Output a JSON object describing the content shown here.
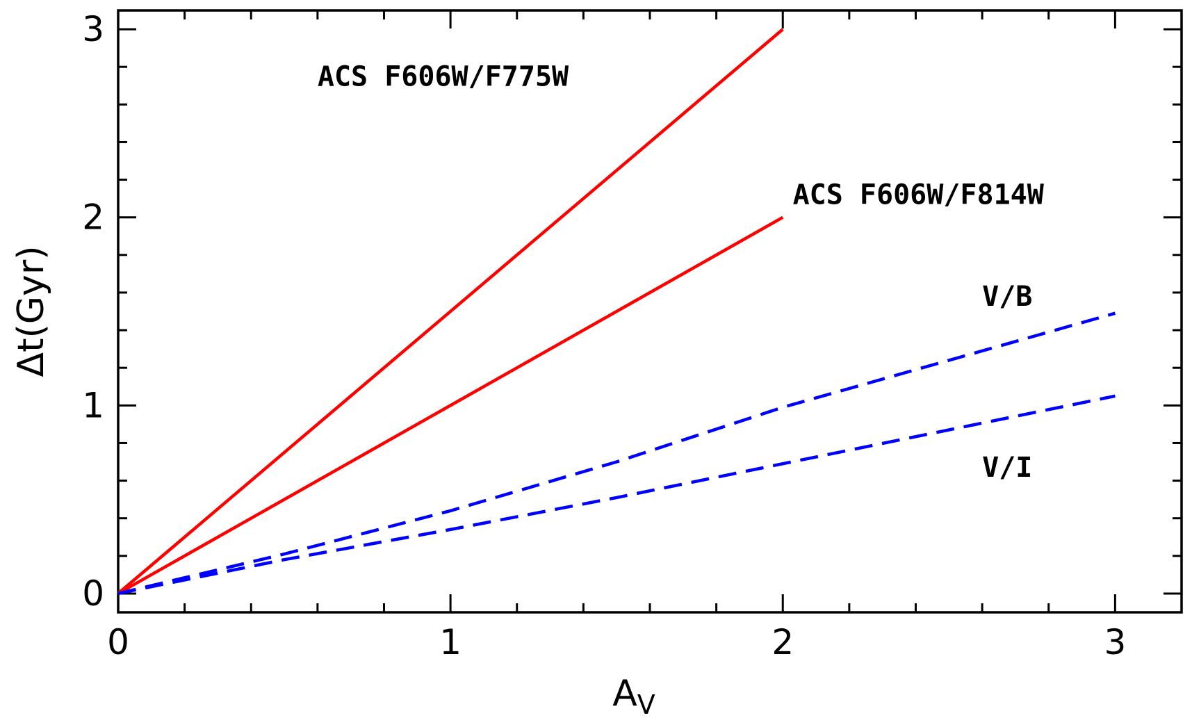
{
  "chart_data": {
    "type": "line",
    "title": "",
    "xlabel_main": "A",
    "xlabel_sub": "V",
    "ylabel": "Δt(Gyr)",
    "xlim": [
      0,
      3.2
    ],
    "ylim": [
      -0.1,
      3.1
    ],
    "x_major_ticks": [
      0,
      1,
      2,
      3
    ],
    "x_minor_step": 0.2,
    "y_major_ticks": [
      0,
      1,
      2,
      3
    ],
    "y_minor_step": 0.2,
    "grid": false,
    "series": [
      {
        "name": "ACS F606W/F775W",
        "style": "solid",
        "color": "#ff0000",
        "x": [
          0,
          2
        ],
        "y": [
          0,
          3
        ]
      },
      {
        "name": "ACS F606W/F814W",
        "style": "solid",
        "color": "#ff0000",
        "x": [
          0,
          2
        ],
        "y": [
          0,
          2
        ]
      },
      {
        "name": "V/B",
        "style": "dashed",
        "color": "#0000ff",
        "x": [
          0,
          0.5,
          1,
          1.5,
          2,
          2.5,
          3
        ],
        "y": [
          0,
          0.21,
          0.44,
          0.7,
          0.99,
          1.24,
          1.49
        ]
      },
      {
        "name": "V/I",
        "style": "dashed",
        "color": "#0000ff",
        "x": [
          0,
          0.5,
          1,
          1.5,
          2,
          2.5,
          3
        ],
        "y": [
          0,
          0.18,
          0.34,
          0.51,
          0.69,
          0.87,
          1.05
        ]
      }
    ]
  }
}
